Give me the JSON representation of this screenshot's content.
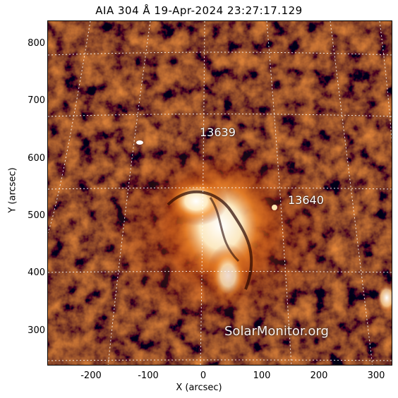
{
  "title": "AIA 304 Å 19-Apr-2024 23:27:17.129",
  "axes": {
    "xlabel": "X (arcsec)",
    "ylabel": "Y (arcsec)",
    "xticks": [
      "-200",
      "-100",
      "0",
      "100",
      "200",
      "300"
    ],
    "yticks": [
      "800",
      "700",
      "600",
      "500",
      "400",
      "300"
    ]
  },
  "regions": [
    {
      "label": "13639"
    },
    {
      "label": "13640"
    }
  ],
  "credit": "SolarMonitor.org",
  "colors": {
    "background": "#1a0300",
    "emission_low": "#7a1a00",
    "emission_mid": "#e06010",
    "emission_high": "#fff6e0",
    "grid": "#ffffff"
  }
}
